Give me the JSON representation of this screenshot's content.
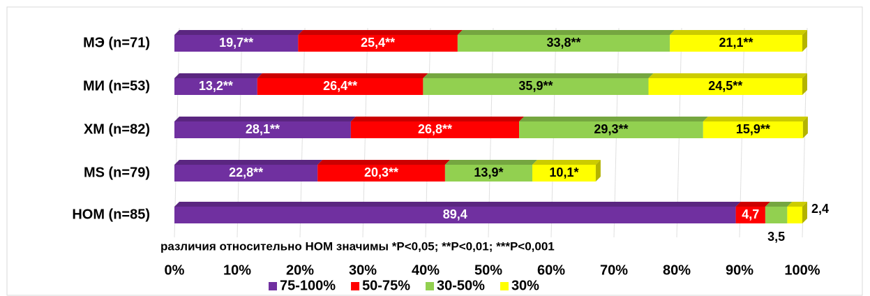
{
  "chart_data": {
    "type": "bar",
    "orientation": "horizontal",
    "stacked": true,
    "categories": [
      "МЭ (n=71)",
      "МИ (n=53)",
      "ХМ (n=82)",
      "MS (n=79)",
      "НОМ (n=85)"
    ],
    "series": [
      {
        "name": "75-100%",
        "color": "#7030a0",
        "values": [
          19.7,
          13.2,
          28.1,
          22.8,
          89.4
        ],
        "value_labels": [
          "19,7**",
          "13,2**",
          "28,1**",
          "22,8**",
          "89,4"
        ]
      },
      {
        "name": "50-75%",
        "color": "#ff0000",
        "values": [
          25.4,
          26.4,
          26.8,
          20.3,
          4.7
        ],
        "value_labels": [
          "25,4**",
          "26,4**",
          "26,8**",
          "20,3**",
          "4,7"
        ]
      },
      {
        "name": "30-50%",
        "color": "#92d050",
        "values": [
          33.8,
          35.9,
          29.3,
          13.9,
          3.5
        ],
        "value_labels": [
          "33,8**",
          "35,9**",
          "29,3**",
          "13,9*",
          "3,5"
        ]
      },
      {
        "name": "30%",
        "color": "#ffff00",
        "values": [
          21.1,
          24.5,
          15.9,
          10.1,
          2.4
        ],
        "value_labels": [
          "21,1**",
          "24,5**",
          "15,9**",
          "10,1*",
          "2,4"
        ]
      }
    ],
    "annotation": "различия относительно НОМ значимы *P<0,05; **P<0,01; ***P<0,001",
    "xlim": [
      0,
      100
    ],
    "xticks": [
      {
        "value": 0,
        "label": "0%"
      },
      {
        "value": 10,
        "label": "10%"
      },
      {
        "value": 20,
        "label": "20%"
      },
      {
        "value": 30,
        "label": "30%"
      },
      {
        "value": 40,
        "label": "40%"
      },
      {
        "value": 50,
        "label": "50%"
      },
      {
        "value": 60,
        "label": "60%"
      },
      {
        "value": 70,
        "label": "70%"
      },
      {
        "value": 80,
        "label": "80%"
      },
      {
        "value": 90,
        "label": "90%"
      },
      {
        "value": 100,
        "label": "100%"
      }
    ],
    "grid": true,
    "legend": "bottom"
  }
}
